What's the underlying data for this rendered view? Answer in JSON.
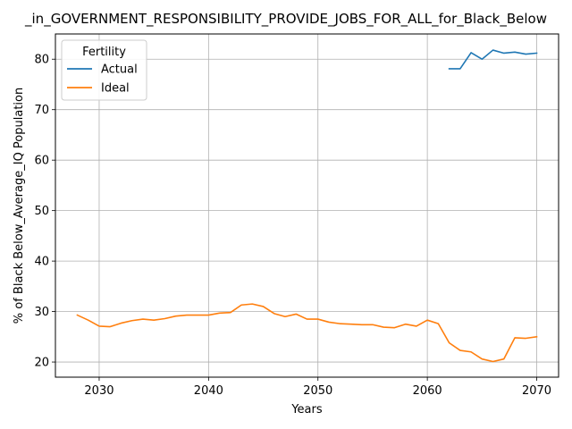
{
  "chart_data": {
    "type": "line",
    "title": "_in_GOVERNMENT_RESPONSIBILITY_PROVIDE_JOBS_FOR_ALL_for_Black_Below",
    "xlabel": "Years",
    "ylabel": "% of Black Below_Average_IQ Population",
    "xlim": [
      2026,
      2072
    ],
    "ylim": [
      17,
      85
    ],
    "xticks": [
      2030,
      2040,
      2050,
      2060,
      2070
    ],
    "yticks": [
      20,
      30,
      40,
      50,
      60,
      70,
      80
    ],
    "grid": true,
    "legend": {
      "title": "Fertility",
      "placement": "top-left"
    },
    "series": [
      {
        "name": "Actual",
        "color": "#1f77b4",
        "x": [
          2062,
          2063,
          2064,
          2065,
          2066,
          2067,
          2068,
          2069,
          2070
        ],
        "y": [
          78.1,
          78.1,
          81.3,
          80.0,
          81.8,
          81.2,
          81.4,
          81.0,
          81.2
        ]
      },
      {
        "name": "Ideal",
        "color": "#ff7f0e",
        "x": [
          2028,
          2029,
          2030,
          2031,
          2032,
          2033,
          2034,
          2035,
          2036,
          2037,
          2038,
          2039,
          2040,
          2041,
          2042,
          2043,
          2044,
          2045,
          2046,
          2047,
          2048,
          2049,
          2050,
          2051,
          2052,
          2053,
          2054,
          2055,
          2056,
          2057,
          2058,
          2059,
          2060,
          2061,
          2062,
          2063,
          2064,
          2065,
          2066,
          2067,
          2068,
          2069,
          2070
        ],
        "y": [
          29.3,
          28.3,
          27.1,
          27.0,
          27.7,
          28.2,
          28.5,
          28.3,
          28.6,
          29.1,
          29.3,
          29.3,
          29.3,
          29.7,
          29.8,
          31.3,
          31.5,
          31.0,
          29.6,
          29.0,
          29.5,
          28.5,
          28.5,
          27.9,
          27.6,
          27.5,
          27.4,
          27.4,
          26.9,
          26.8,
          27.5,
          27.1,
          28.3,
          27.6,
          23.8,
          22.3,
          22.0,
          20.6,
          20.1,
          20.6,
          24.8,
          24.7,
          25.0
        ]
      }
    ]
  }
}
